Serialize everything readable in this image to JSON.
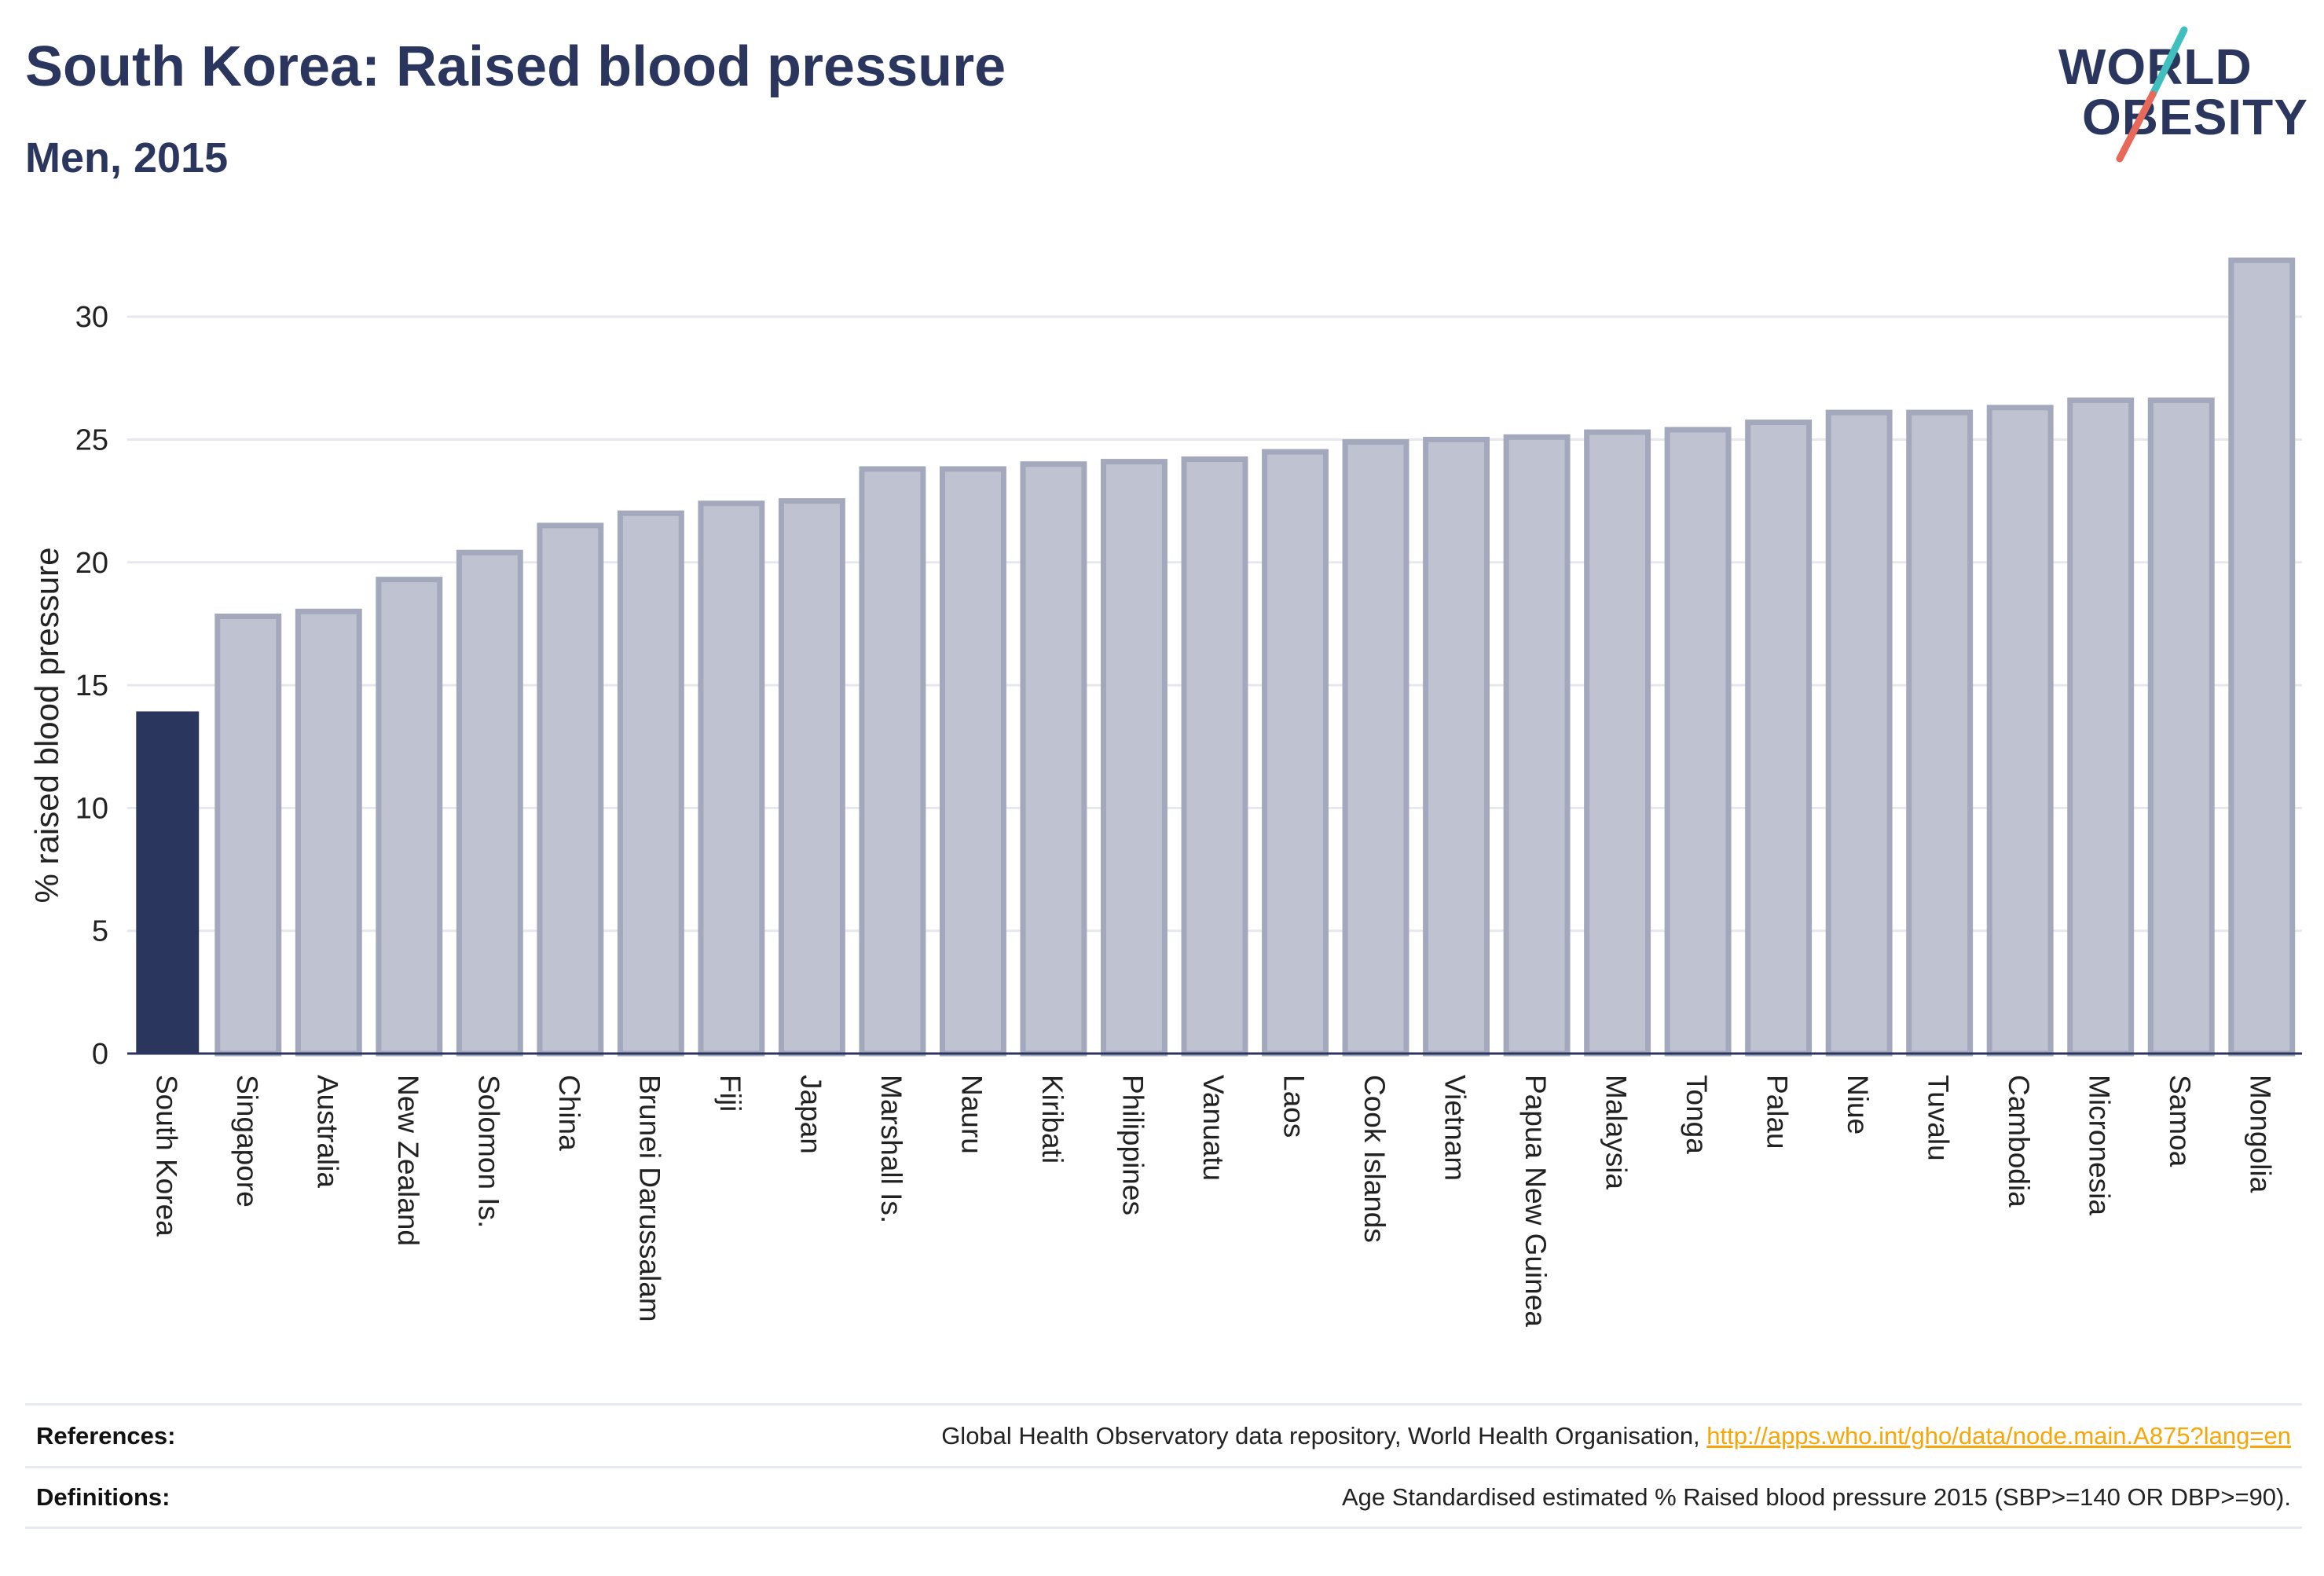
{
  "header": {
    "title": "South Korea: Raised blood pressure",
    "subtitle": "Men, 2015"
  },
  "logo": {
    "line1": "WORLD",
    "line2": "OBESITY",
    "slash_colors": [
      "#3fbfbe",
      "#e8685a"
    ]
  },
  "footer": {
    "references_label": "References:",
    "references_text": "Global Health Observatory data repository, World Health Organisation, ",
    "references_link": "http://apps.who.int/gho/data/node.main.A875?lang=en",
    "definitions_label": "Definitions:",
    "definitions_text": "Age Standardised estimated % Raised blood pressure 2015 (SBP>=140 OR DBP>=90)."
  },
  "colors": {
    "highlight": "#2b365e",
    "bar_fill": "#bfc2d0",
    "bar_stroke": "#a3a8bd",
    "grid": "#e6e8ee",
    "axis": "#2b365e",
    "link": "#f5a70a"
  },
  "chart_data": {
    "type": "bar",
    "title": "South Korea: Raised blood pressure",
    "subtitle": "Men, 2015",
    "xlabel": "",
    "ylabel": "% raised blood pressure",
    "ylim": [
      0,
      32.5
    ],
    "yticks": [
      0,
      5,
      10,
      15,
      20,
      25,
      30
    ],
    "grid": true,
    "highlight_category": "South Korea",
    "categories": [
      "South Korea",
      "Singapore",
      "Australia",
      "New Zealand",
      "Solomon Is.",
      "China",
      "Brunei Darussalam",
      "Fiji",
      "Japan",
      "Marshall Is.",
      "Nauru",
      "Kiribati",
      "Philippines",
      "Vanuatu",
      "Laos",
      "Cook Islands",
      "Vietnam",
      "Papua New Guinea",
      "Malaysia",
      "Tonga",
      "Palau",
      "Niue",
      "Tuvalu",
      "Cambodia",
      "Micronesia",
      "Samoa",
      "Mongolia"
    ],
    "values": [
      13.9,
      17.8,
      18.0,
      19.3,
      20.4,
      21.5,
      22.0,
      22.4,
      22.5,
      23.8,
      23.8,
      24.0,
      24.1,
      24.2,
      24.5,
      24.9,
      25.0,
      25.1,
      25.3,
      25.4,
      25.7,
      26.1,
      26.1,
      26.3,
      26.6,
      26.6,
      32.3
    ]
  }
}
